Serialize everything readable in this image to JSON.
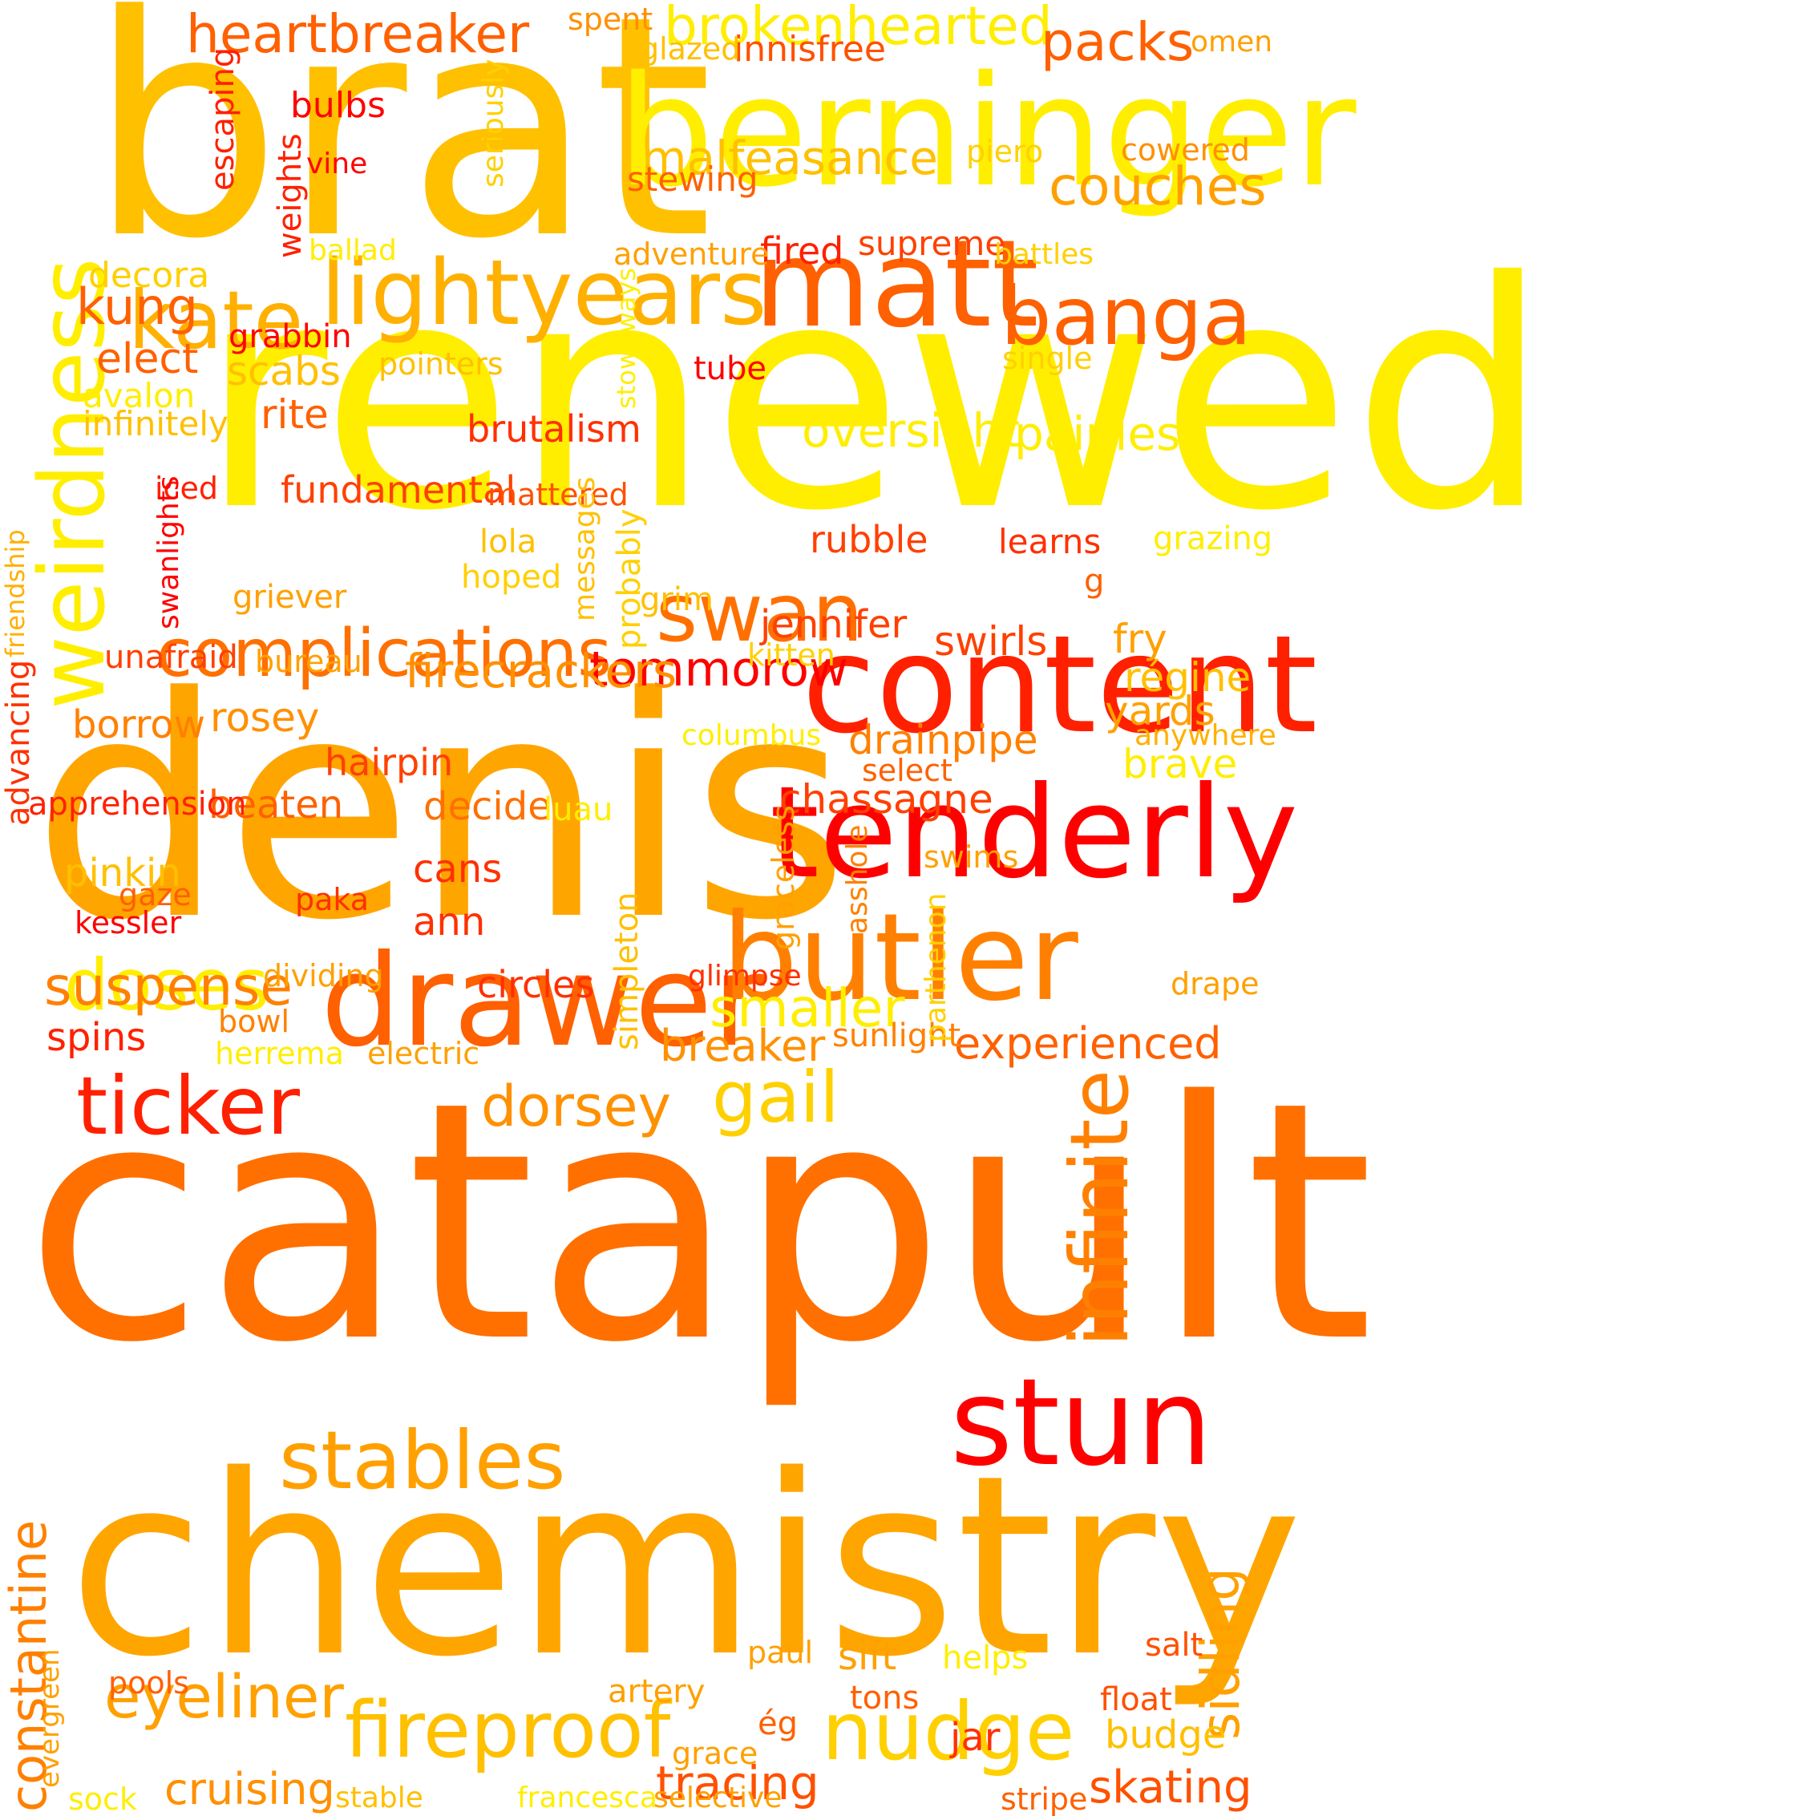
{
  "palette": {
    "yellow": "#ffee00",
    "gold": "#ffc000",
    "amber": "#ffa500",
    "orange": "#ff7000",
    "redorange": "#ff4500",
    "red": "#ff0000"
  },
  "words": [
    {
      "text": "renewed",
      "color": "#ffee00"
    },
    {
      "text": "catapult",
      "color": "#ff7000"
    },
    {
      "text": "denis",
      "color": "#ffa500"
    },
    {
      "text": "brat",
      "color": "#ffc000"
    },
    {
      "text": "chemistry",
      "color": "#ffa500"
    },
    {
      "text": "berninger",
      "color": "#ffee00"
    },
    {
      "text": "content",
      "color": "#ff2000"
    },
    {
      "text": "tenderly",
      "color": "#ff0000"
    },
    {
      "text": "drawer",
      "color": "#ff6000"
    },
    {
      "text": "butler",
      "color": "#ff8000"
    },
    {
      "text": "weirdness",
      "color": "#ffee00"
    },
    {
      "text": "matt",
      "color": "#ff6000"
    },
    {
      "text": "lightyears",
      "color": "#ffb000"
    },
    {
      "text": "stun",
      "color": "#ff0000"
    },
    {
      "text": "swan",
      "color": "#ff7000"
    },
    {
      "text": "infinite",
      "color": "#ff8000"
    },
    {
      "text": "kate",
      "color": "#ffb000"
    },
    {
      "text": "banga",
      "color": "#ff6000"
    },
    {
      "text": "complications",
      "color": "#ff7000"
    },
    {
      "text": "ticker",
      "color": "#ff2000"
    },
    {
      "text": "nudge",
      "color": "#ffd000"
    },
    {
      "text": "fireproof",
      "color": "#ffc000"
    },
    {
      "text": "stables",
      "color": "#ffa000"
    },
    {
      "text": "constantine",
      "color": "#ff8000"
    },
    {
      "text": "sidling",
      "color": "#ffa000"
    },
    {
      "text": "doses",
      "color": "#ffee00"
    },
    {
      "text": "gail",
      "color": "#ffd000"
    },
    {
      "text": "tommorow",
      "color": "#ff0000"
    },
    {
      "text": "dorsey",
      "color": "#ff9000"
    },
    {
      "text": "eyeliner",
      "color": "#ffa000"
    },
    {
      "text": "brokenhearted",
      "color": "#ffee00"
    },
    {
      "text": "heartbreaker",
      "color": "#ff6000"
    },
    {
      "text": "packs",
      "color": "#ff6000"
    },
    {
      "text": "couches",
      "color": "#ffa000"
    },
    {
      "text": "malfeasance",
      "color": "#ffc000"
    },
    {
      "text": "oversight",
      "color": "#ffee00"
    },
    {
      "text": "painless",
      "color": "#ffee00"
    },
    {
      "text": "suspense",
      "color": "#ff8000"
    },
    {
      "text": "smaller",
      "color": "#ffee00"
    },
    {
      "text": "firecrackers",
      "color": "#ff9000"
    },
    {
      "text": "experienced",
      "color": "#ff6000"
    },
    {
      "text": "skating",
      "color": "#ff5000"
    },
    {
      "text": "tracing",
      "color": "#ff5000"
    },
    {
      "text": "kung",
      "color": "#ff6000"
    },
    {
      "text": "cruising",
      "color": "#ff9000"
    },
    {
      "text": "breaker",
      "color": "#ff9000"
    },
    {
      "text": "drainpipe",
      "color": "#ff8000"
    },
    {
      "text": "chassagne",
      "color": "#ff4000"
    },
    {
      "text": "jennifer",
      "color": "#ff4000"
    },
    {
      "text": "circles",
      "color": "#ff3000"
    },
    {
      "text": "brutalism",
      "color": "#ff3000"
    },
    {
      "text": "fundamental",
      "color": "#ff4000"
    },
    {
      "text": "swirls",
      "color": "#ff4000"
    },
    {
      "text": "scabs",
      "color": "#ffc000"
    },
    {
      "text": "elect",
      "color": "#ff6000"
    },
    {
      "text": "rite",
      "color": "#ff6000"
    },
    {
      "text": "rubble",
      "color": "#ff4000"
    },
    {
      "text": "hairpin",
      "color": "#ff4000"
    },
    {
      "text": "rosey",
      "color": "#ff9000"
    },
    {
      "text": "borrow",
      "color": "#ff8000"
    },
    {
      "text": "beaten",
      "color": "#ff6000"
    },
    {
      "text": "decide",
      "color": "#ff7000"
    },
    {
      "text": "cans",
      "color": "#ff3000"
    },
    {
      "text": "ann",
      "color": "#ff3000"
    },
    {
      "text": "spins",
      "color": "#ff2000"
    },
    {
      "text": "pinkin",
      "color": "#ffc000"
    },
    {
      "text": "régine",
      "color": "#ffc000"
    },
    {
      "text": "yards",
      "color": "#ffa000"
    },
    {
      "text": "brave",
      "color": "#ffee00"
    },
    {
      "text": "fry",
      "color": "#ffa000"
    },
    {
      "text": "budge",
      "color": "#ffc000"
    },
    {
      "text": "sift",
      "color": "#ffa000"
    },
    {
      "text": "jar",
      "color": "#ff3000"
    },
    {
      "text": "decora",
      "color": "#ffd000"
    },
    {
      "text": "avalon",
      "color": "#ffee00"
    },
    {
      "text": "infinitely",
      "color": "#ffc000"
    },
    {
      "text": "supreme",
      "color": "#ff4000"
    },
    {
      "text": "fired",
      "color": "#ff2000"
    },
    {
      "text": "stewing",
      "color": "#ff6000"
    },
    {
      "text": "innisfree",
      "color": "#ff5000"
    },
    {
      "text": "bulbs",
      "color": "#ff0000"
    },
    {
      "text": "vine",
      "color": "#ff0000"
    },
    {
      "text": "grabbin",
      "color": "#ff0000"
    },
    {
      "text": "pointers",
      "color": "#ffc000"
    },
    {
      "text": "tube",
      "color": "#ff0000"
    },
    {
      "text": "single",
      "color": "#ffd000"
    },
    {
      "text": "adventure",
      "color": "#ffa000"
    },
    {
      "text": "ballad",
      "color": "#ffee00"
    },
    {
      "text": "battles",
      "color": "#ffd000"
    },
    {
      "text": "piero",
      "color": "#ffd000"
    },
    {
      "text": "cowered",
      "color": "#ff9000"
    },
    {
      "text": "glazed",
      "color": "#ffc000"
    },
    {
      "text": "spent",
      "color": "#ff9000"
    },
    {
      "text": "omen",
      "color": "#ffa000"
    },
    {
      "text": "iced",
      "color": "#ff2000"
    },
    {
      "text": "mattered",
      "color": "#ff5000"
    },
    {
      "text": "lola",
      "color": "#ffc000"
    },
    {
      "text": "hoped",
      "color": "#ffd000"
    },
    {
      "text": "griever",
      "color": "#ffa000"
    },
    {
      "text": "grim",
      "color": "#ffc000"
    },
    {
      "text": "learns",
      "color": "#ff3000"
    },
    {
      "text": "grazing",
      "color": "#ffee00"
    },
    {
      "text": "g",
      "color": "#ff6000"
    },
    {
      "text": "unafraid",
      "color": "#ff4000"
    },
    {
      "text": "bureau",
      "color": "#ffa000"
    },
    {
      "text": "kitten",
      "color": "#ffd000"
    },
    {
      "text": "columbus",
      "color": "#ffee00"
    },
    {
      "text": "select",
      "color": "#ff6000"
    },
    {
      "text": "anywhere",
      "color": "#ffb000"
    },
    {
      "text": "apprehension",
      "color": "#ff2000"
    },
    {
      "text": "luau",
      "color": "#ffee00"
    },
    {
      "text": "swims",
      "color": "#ffa000"
    },
    {
      "text": "gaze",
      "color": "#ff6000"
    },
    {
      "text": "kessler",
      "color": "#ff0000"
    },
    {
      "text": "paka",
      "color": "#ff3000"
    },
    {
      "text": "dividing",
      "color": "#ffa000"
    },
    {
      "text": "glimpse",
      "color": "#ff3000"
    },
    {
      "text": "drape",
      "color": "#ffa000"
    },
    {
      "text": "bowl",
      "color": "#ff8000"
    },
    {
      "text": "herrema",
      "color": "#ffee00"
    },
    {
      "text": "electric",
      "color": "#ffa000"
    },
    {
      "text": "sunlight",
      "color": "#ff8000"
    },
    {
      "text": "pools",
      "color": "#ff6000"
    },
    {
      "text": "paul",
      "color": "#ffa000"
    },
    {
      "text": "helps",
      "color": "#ffee00"
    },
    {
      "text": "salt",
      "color": "#ff5000"
    },
    {
      "text": "artery",
      "color": "#ffa000"
    },
    {
      "text": "tons",
      "color": "#ff6000"
    },
    {
      "text": "float",
      "color": "#ff5000"
    },
    {
      "text": "ég",
      "color": "#ff6000"
    },
    {
      "text": "grace",
      "color": "#ffa000"
    },
    {
      "text": "sock",
      "color": "#ffee00"
    },
    {
      "text": "stable",
      "color": "#ffc000"
    },
    {
      "text": "francesca",
      "color": "#ffee00"
    },
    {
      "text": "selective",
      "color": "#ffa000"
    },
    {
      "text": "stripe",
      "color": "#ff6000"
    },
    {
      "text": "escaping",
      "color": "#ff2000"
    },
    {
      "text": "weights",
      "color": "#ff2000"
    },
    {
      "text": "seriously",
      "color": "#ffd000"
    },
    {
      "text": "stowaways",
      "color": "#ffee00"
    },
    {
      "text": "friendship",
      "color": "#ffb000"
    },
    {
      "text": "swanlights",
      "color": "#ff0000"
    },
    {
      "text": "messages",
      "color": "#ffc000"
    },
    {
      "text": "probably",
      "color": "#ffd000"
    },
    {
      "text": "advancing",
      "color": "#ff3000"
    },
    {
      "text": "simpleton",
      "color": "#ffc000"
    },
    {
      "text": "graceless",
      "color": "#ffa000"
    },
    {
      "text": "asshole",
      "color": "#ff8000"
    },
    {
      "text": "parthenon",
      "color": "#ffd000"
    },
    {
      "text": "evergreen",
      "color": "#ffa000"
    }
  ]
}
